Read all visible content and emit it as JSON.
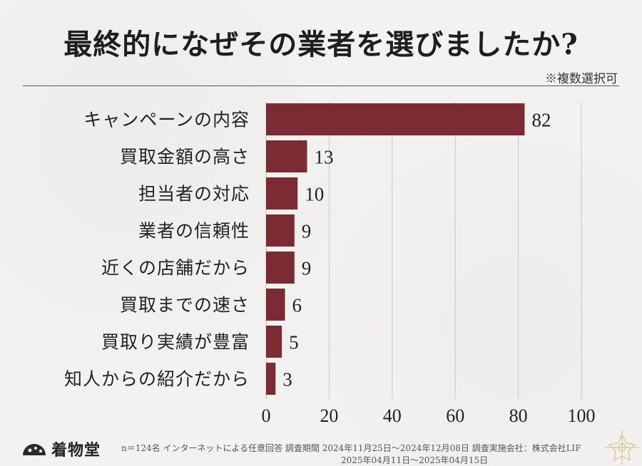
{
  "title": "最終的になぜその業者を選びましたか?",
  "note": "※複数選択可",
  "chart_data": {
    "type": "bar",
    "orientation": "horizontal",
    "categories": [
      "キャンペーンの内容",
      "買取金額の高さ",
      "担当者の対応",
      "業者の信頼性",
      "近くの店舗だから",
      "買取までの速さ",
      "買取り実績が豊富",
      "知人からの紹介だから"
    ],
    "values": [
      82,
      13,
      10,
      9,
      9,
      6,
      5,
      3
    ],
    "xlim": [
      0,
      100
    ],
    "xticks": [
      0,
      20,
      40,
      60,
      80,
      100
    ],
    "grid": "vertical",
    "bar_color": "#7b2b31"
  },
  "footer": {
    "logo_text": "着物堂",
    "line1": "n＝124名 インターネットによる任意回答 調査期間 2024年11月25日～2024年12月08日 調査実施会社：株式会社LIF",
    "line2": "2025年04月11日～2025年04月15日"
  }
}
